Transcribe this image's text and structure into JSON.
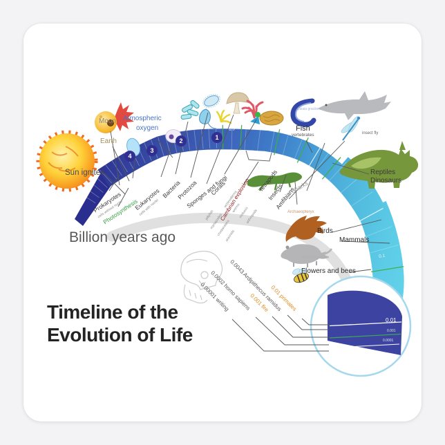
{
  "sticker": {
    "title_line1": "Timeline of the",
    "title_line2": "Evolution of Life",
    "axis_label": "Billion years ago"
  },
  "celestial": {
    "sun_ignites": "Sun ignites",
    "moon": "Moon",
    "earth": "Earth",
    "atmospheric_line1": "Atmospheric",
    "atmospheric_line2": "oxygen"
  },
  "arc": {
    "numbers": [
      "4",
      "3",
      "2",
      "1"
    ],
    "tick_labels": [
      "0.5",
      "0.1"
    ],
    "colors": {
      "start": "#2a2e8e",
      "early": "#3a57ae",
      "mid": "#3f7fca",
      "late": "#52bade",
      "end": "#63d2ea",
      "event_tick": "#3fae49",
      "magnifier_wedge": "#3c43a0"
    }
  },
  "early_life": {
    "prokaryotes": "Prokaryotes",
    "prokaryotes_sub": "cells without nuclei",
    "photosynthesis": "Photosynthesis",
    "eukaryotes": "Eukaryotes",
    "eukaryotes_sub": "cells with nuclei",
    "bacteria": "Bacteria",
    "protozoa": "Protozoa",
    "sponges": "Sponges and fungi",
    "corals": "Corals"
  },
  "cambrian": {
    "title": "Cambrian explosion",
    "groups_left": [
      "jellyfish",
      "myriapodes",
      "crustaceans",
      "aracnids"
    ],
    "groups_right": [
      "echinoderms",
      "worms",
      "moluscs",
      "arthropods"
    ]
  },
  "vertebrates": {
    "fish": "Fish",
    "fish_sub": "vertebrates",
    "pikaia": "pikaia gracilens",
    "tetrapods": "Tetrapods",
    "insects": "Insects",
    "amphibians": "Amfibians",
    "sharks": "Sharks",
    "insect_fly": "insect fly",
    "reptiles_line1": "Reptiles",
    "reptiles_line2": "Dinosaurs",
    "archaeopteryx": "Archaeopteryx",
    "birds": "Birds",
    "mammals": "Mammals",
    "morganucodon": "Morganucodon",
    "flowers": "Flowers and bees"
  },
  "recent": {
    "ardipithecus": "0.0043 Ardipithecus ramidus",
    "primates": "0.01 primates",
    "fire": "0.001 fire",
    "homo_sapiens": "0.0002 homo sapiens",
    "writing": "0.00001 writing"
  },
  "magnifier": {
    "values": [
      "0.01",
      "0.001",
      "0.0001"
    ]
  }
}
